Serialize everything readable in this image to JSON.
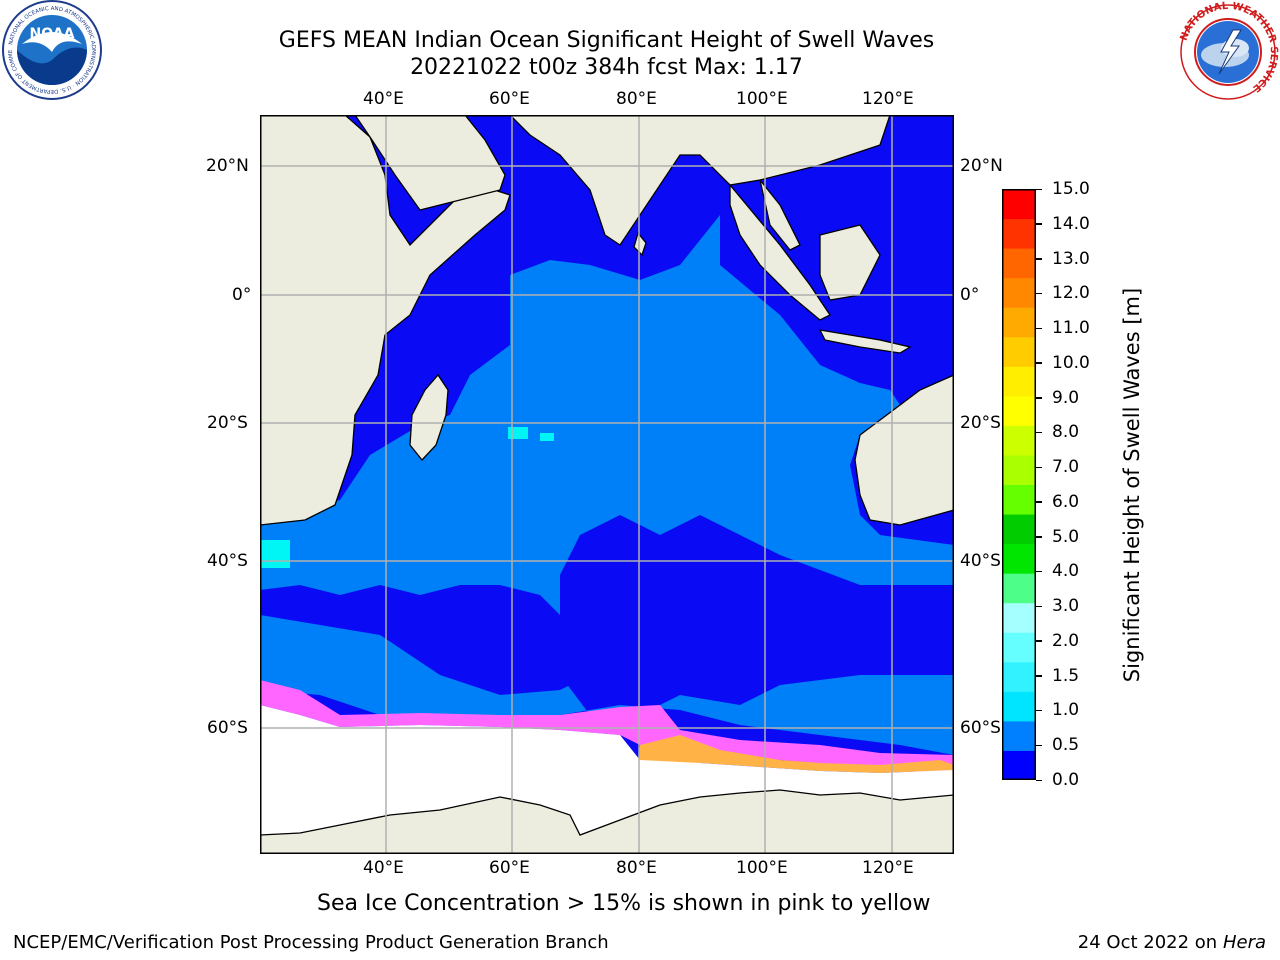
{
  "title_line1": "GEFS MEAN Indian Ocean Significant Height of Swell Waves",
  "title_line2": "20221022 t00z 384h fcst   Max: 1.17",
  "map": {
    "top_lon_ticks": [
      "40°E",
      "60°E",
      "80°E",
      "100°E",
      "120°E"
    ],
    "bottom_lon_ticks": [
      "40°E",
      "60°E",
      "80°E",
      "100°E",
      "120°E"
    ],
    "left_lat_ticks": [
      "20°N",
      "0°",
      "20°S",
      "40°S",
      "60°S"
    ],
    "right_lat_ticks": [
      "20°N",
      "0°",
      "20°S",
      "40°S",
      "60°S"
    ],
    "colors": {
      "land": "#ecedde",
      "ice": "#ffffff",
      "swell_0_0_5": "#0a0af5",
      "swell_0_5_1_0": "#0080f8",
      "swell_1_0_1_5": "#00f5f5",
      "sea_ice_low": "#ff66ff",
      "sea_ice_high": "#ffb347"
    }
  },
  "colorbar": {
    "label": "Significant Height of Swell Waves [m]",
    "ticks": [
      "15.0",
      "14.0",
      "13.0",
      "12.0",
      "11.0",
      "10.0",
      "9.0",
      "8.0",
      "7.0",
      "6.0",
      "5.0",
      "4.0",
      "3.0",
      "2.0",
      "1.5",
      "1.0",
      "0.5",
      "0.0"
    ],
    "colors_bottom_to_top": [
      "#0000ff",
      "#0080ff",
      "#00e5ff",
      "#33f2ff",
      "#66ffff",
      "#a6ffff",
      "#4dff88",
      "#00e600",
      "#00cc00",
      "#66ff00",
      "#aaff00",
      "#ccff00",
      "#ffff00",
      "#ffee00",
      "#ffcc00",
      "#ffaa00",
      "#ff8800",
      "#ff6600",
      "#ff3300",
      "#ff0000"
    ]
  },
  "sea_ice_note": "Sea Ice Concentration > 15% is shown in pink to yellow",
  "footer_left": "NCEP/EMC/Verification Post Processing Product Generation Branch",
  "footer_right_date": "24 Oct 2022 on ",
  "footer_right_host": "Hera",
  "logos": {
    "left": "NOAA",
    "left_ring": "NATIONAL OCEANIC AND ATMOSPHERIC ADMINISTRATION · U.S. DEPARTMENT OF COMMERCE",
    "right_ring": "NATIONAL WEATHER SERVICE"
  }
}
